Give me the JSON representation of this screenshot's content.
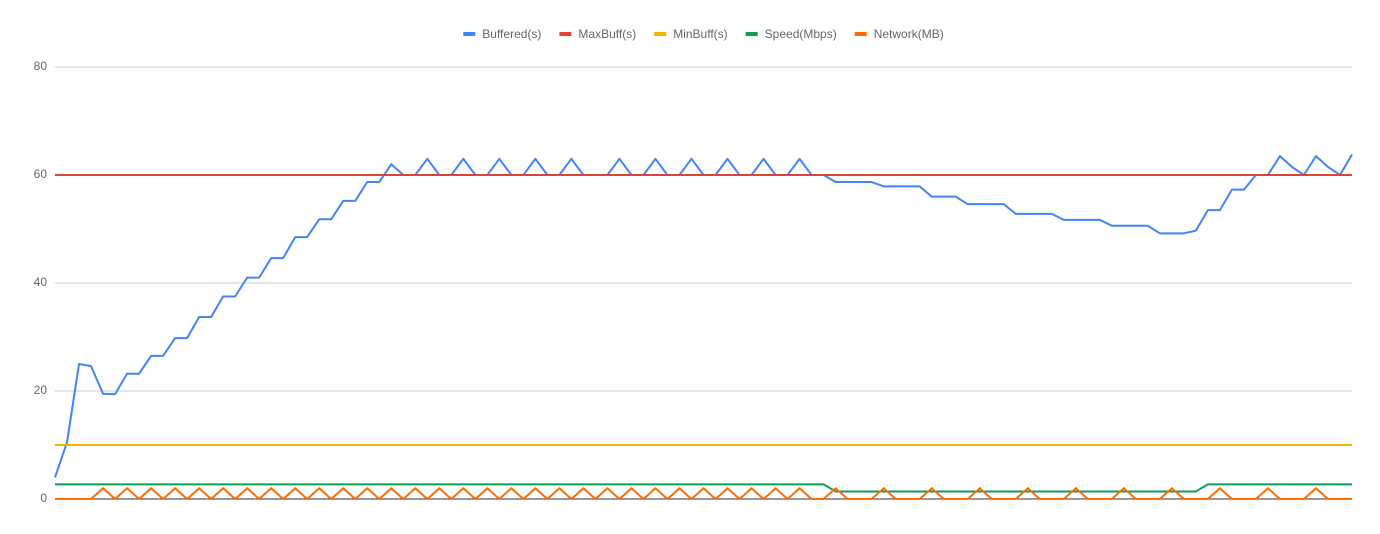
{
  "chart_data": {
    "type": "line",
    "ylim": [
      0,
      80
    ],
    "yticks": [
      0,
      20,
      40,
      60,
      80
    ],
    "grid": true,
    "legend": "top",
    "series": [
      {
        "name": "Buffered(s)",
        "color": "#4285f4",
        "values": [
          4,
          10.5,
          25,
          24.6,
          19.5,
          19.4,
          23.2,
          23.2,
          26.5,
          26.5,
          29.8,
          29.8,
          33.7,
          33.7,
          37.5,
          37.5,
          41,
          41,
          44.6,
          44.6,
          48.5,
          48.5,
          51.8,
          51.8,
          55.2,
          55.2,
          58.7,
          58.7,
          62,
          60,
          60,
          63,
          60,
          60,
          63,
          60,
          60,
          63,
          60,
          60,
          63,
          60,
          60,
          63,
          60,
          60,
          60,
          63,
          60,
          60,
          63,
          60,
          60,
          63,
          60,
          60,
          63,
          60,
          60,
          63,
          60,
          60,
          63,
          60,
          60,
          58.7,
          58.7,
          58.7,
          58.7,
          57.9,
          57.9,
          57.9,
          57.9,
          56,
          56,
          56,
          54.6,
          54.6,
          54.6,
          54.6,
          52.8,
          52.8,
          52.8,
          52.8,
          51.7,
          51.7,
          51.7,
          51.7,
          50.6,
          50.6,
          50.6,
          50.6,
          49.2,
          49.2,
          49.2,
          49.7,
          53.5,
          53.5,
          57.3,
          57.3,
          60,
          60,
          63.5,
          61.5,
          60,
          63.5,
          61.5,
          60,
          63.8
        ]
      },
      {
        "name": "MaxBuff(s)",
        "color": "#db4437",
        "values": [
          60,
          60,
          60,
          60,
          60,
          60,
          60,
          60,
          60,
          60,
          60,
          60,
          60,
          60,
          60,
          60,
          60,
          60,
          60,
          60,
          60,
          60,
          60,
          60,
          60,
          60,
          60,
          60,
          60,
          60,
          60,
          60,
          60,
          60,
          60,
          60,
          60,
          60,
          60,
          60,
          60,
          60,
          60,
          60,
          60,
          60,
          60,
          60,
          60,
          60,
          60,
          60,
          60,
          60,
          60,
          60,
          60,
          60,
          60,
          60,
          60,
          60,
          60,
          60,
          60,
          60,
          60,
          60,
          60,
          60,
          60,
          60,
          60,
          60,
          60,
          60,
          60,
          60,
          60,
          60,
          60,
          60,
          60,
          60,
          60,
          60,
          60,
          60,
          60,
          60,
          60,
          60,
          60,
          60,
          60,
          60,
          60,
          60,
          60,
          60,
          60,
          60,
          60,
          60,
          60,
          60,
          60,
          60,
          60
        ]
      },
      {
        "name": "MinBuff(s)",
        "color": "#f4b400",
        "values": [
          10,
          10,
          10,
          10,
          10,
          10,
          10,
          10,
          10,
          10,
          10,
          10,
          10,
          10,
          10,
          10,
          10,
          10,
          10,
          10,
          10,
          10,
          10,
          10,
          10,
          10,
          10,
          10,
          10,
          10,
          10,
          10,
          10,
          10,
          10,
          10,
          10,
          10,
          10,
          10,
          10,
          10,
          10,
          10,
          10,
          10,
          10,
          10,
          10,
          10,
          10,
          10,
          10,
          10,
          10,
          10,
          10,
          10,
          10,
          10,
          10,
          10,
          10,
          10,
          10,
          10,
          10,
          10,
          10,
          10,
          10,
          10,
          10,
          10,
          10,
          10,
          10,
          10,
          10,
          10,
          10,
          10,
          10,
          10,
          10,
          10,
          10,
          10,
          10,
          10,
          10,
          10,
          10,
          10,
          10,
          10,
          10,
          10,
          10,
          10,
          10,
          10,
          10,
          10,
          10,
          10,
          10,
          10,
          10
        ]
      },
      {
        "name": "Speed(Mbps)",
        "color": "#0f9d58",
        "values": [
          2.7,
          2.7,
          2.7,
          2.7,
          2.7,
          2.7,
          2.7,
          2.7,
          2.7,
          2.7,
          2.7,
          2.7,
          2.7,
          2.7,
          2.7,
          2.7,
          2.7,
          2.7,
          2.7,
          2.7,
          2.7,
          2.7,
          2.7,
          2.7,
          2.7,
          2.7,
          2.7,
          2.7,
          2.7,
          2.7,
          2.7,
          2.7,
          2.7,
          2.7,
          2.7,
          2.7,
          2.7,
          2.7,
          2.7,
          2.7,
          2.7,
          2.7,
          2.7,
          2.7,
          2.7,
          2.7,
          2.7,
          2.7,
          2.7,
          2.7,
          2.7,
          2.7,
          2.7,
          2.7,
          2.7,
          2.7,
          2.7,
          2.7,
          2.7,
          2.7,
          2.7,
          2.7,
          2.7,
          2.7,
          2.7,
          1.4,
          1.4,
          1.4,
          1.4,
          1.4,
          1.4,
          1.4,
          1.4,
          1.4,
          1.4,
          1.4,
          1.4,
          1.4,
          1.4,
          1.4,
          1.4,
          1.4,
          1.4,
          1.4,
          1.4,
          1.4,
          1.4,
          1.4,
          1.4,
          1.4,
          1.4,
          1.4,
          1.4,
          1.4,
          1.4,
          1.4,
          2.7,
          2.7,
          2.7,
          2.7,
          2.7,
          2.7,
          2.7,
          2.7,
          2.7,
          2.7,
          2.7,
          2.7,
          2.7
        ]
      },
      {
        "name": "Network(MB)",
        "color": "#ff6d01",
        "values": [
          0,
          0,
          0,
          0,
          2,
          0,
          2,
          0,
          2,
          0,
          2,
          0,
          2,
          0,
          2,
          0,
          2,
          0,
          2,
          0,
          2,
          0,
          2,
          0,
          2,
          0,
          2,
          0,
          2,
          0,
          2,
          0,
          2,
          0,
          2,
          0,
          2,
          0,
          2,
          0,
          2,
          0,
          2,
          0,
          2,
          0,
          2,
          0,
          2,
          0,
          2,
          0,
          2,
          0,
          2,
          0,
          2,
          0,
          2,
          0,
          2,
          0,
          2,
          0,
          0,
          2,
          0,
          0,
          0,
          2,
          0,
          0,
          0,
          2,
          0,
          0,
          0,
          2,
          0,
          0,
          0,
          2,
          0,
          0,
          0,
          2,
          0,
          0,
          0,
          2,
          0,
          0,
          0,
          2,
          0,
          0,
          0,
          2,
          0,
          0,
          0,
          2,
          0,
          0,
          0,
          2,
          0,
          0,
          0
        ]
      }
    ]
  }
}
